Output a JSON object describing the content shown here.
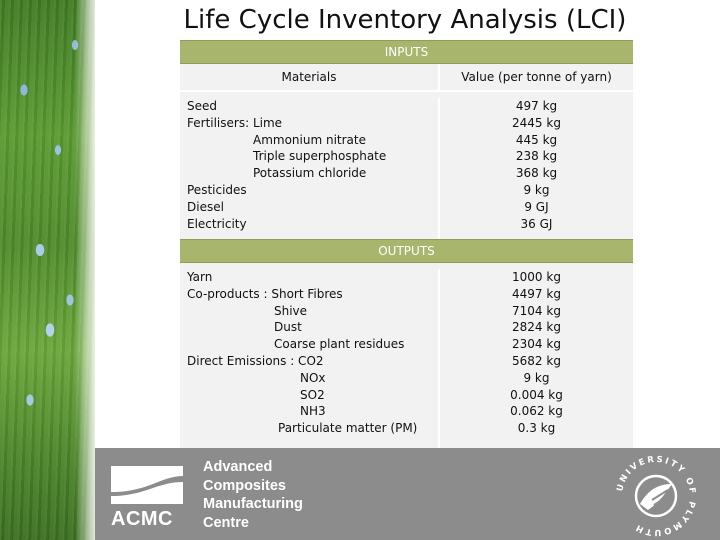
{
  "title": "Life Cycle Inventory Analysis (LCI)",
  "inputs": {
    "band_label": "INPUTS",
    "materials_header": "Materials",
    "value_header": "Value  (per tonne of yarn)",
    "items": [
      {
        "label": "Seed",
        "indent": 0,
        "value": "497 kg"
      },
      {
        "label": "Fertilisers: Lime",
        "indent": 0,
        "value": "2445 kg"
      },
      {
        "label": "Ammonium nitrate",
        "indent": 1,
        "value": "445 kg"
      },
      {
        "label": "Triple superphosphate",
        "indent": 1,
        "value": "238 kg"
      },
      {
        "label": "Potassium chloride",
        "indent": 1,
        "value": "368 kg"
      },
      {
        "label": "Pesticides",
        "indent": 0,
        "value": "9 kg"
      },
      {
        "label": "Diesel",
        "indent": 0,
        "value": "9 GJ"
      },
      {
        "label": "Electricity",
        "indent": 0,
        "value": "36 GJ"
      }
    ]
  },
  "outputs": {
    "band_label": "OUTPUTS",
    "items": [
      {
        "label": "Yarn",
        "indent": 0,
        "value": "1000 kg"
      },
      {
        "label": "Co-products : Short Fibres",
        "indent": 0,
        "value": "4497 kg"
      },
      {
        "label": "Shive",
        "indent": 2,
        "value": "7104 kg"
      },
      {
        "label": "Dust",
        "indent": 2,
        "value": "2824 kg"
      },
      {
        "label": "Coarse plant residues",
        "indent": 2,
        "value": "2304 kg"
      },
      {
        "label": "Direct Emissions : CO2",
        "indent": 0,
        "value": "5682 kg"
      },
      {
        "label": "NOx",
        "indent": 3,
        "value": "9 kg"
      },
      {
        "label": "SO2",
        "indent": 3,
        "value": "0.004 kg"
      },
      {
        "label": "NH3",
        "indent": 3,
        "value": "0.062 kg"
      },
      {
        "label": "Particulate matter (PM)",
        "indent": 4,
        "value": "0.3 kg"
      }
    ]
  },
  "footer": {
    "logo_text": "ACMC",
    "org_lines": [
      "Advanced",
      "Composites",
      "Manufacturing",
      "Centre"
    ],
    "seal_text": "UNIVERSITY OF PLYMOUTH"
  },
  "colors": {
    "band": "#a7b66c",
    "row_bg": "#f2f2f2",
    "footer_bg": "#8c8c8c"
  }
}
